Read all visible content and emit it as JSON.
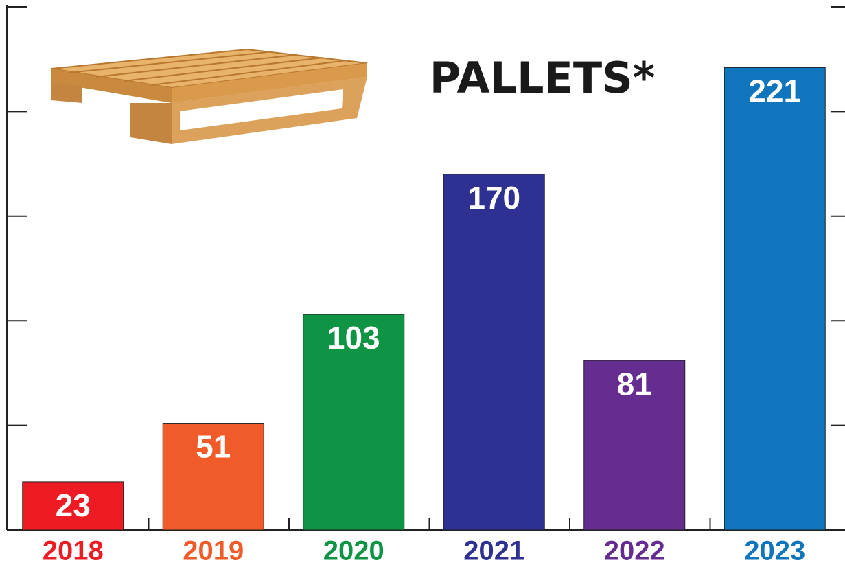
{
  "chart_data": {
    "type": "bar",
    "title": "PALLETS*",
    "categories": [
      "2018",
      "2019",
      "2020",
      "2021",
      "2022",
      "2023"
    ],
    "values": [
      23,
      51,
      103,
      170,
      81,
      221
    ],
    "colors": [
      "#ed1c24",
      "#f15a29",
      "#0e9444",
      "#2e3192",
      "#662d91",
      "#0f75bc"
    ],
    "ylim": [
      0,
      250
    ],
    "yticks": [
      0,
      50,
      100,
      150,
      200,
      250
    ]
  }
}
